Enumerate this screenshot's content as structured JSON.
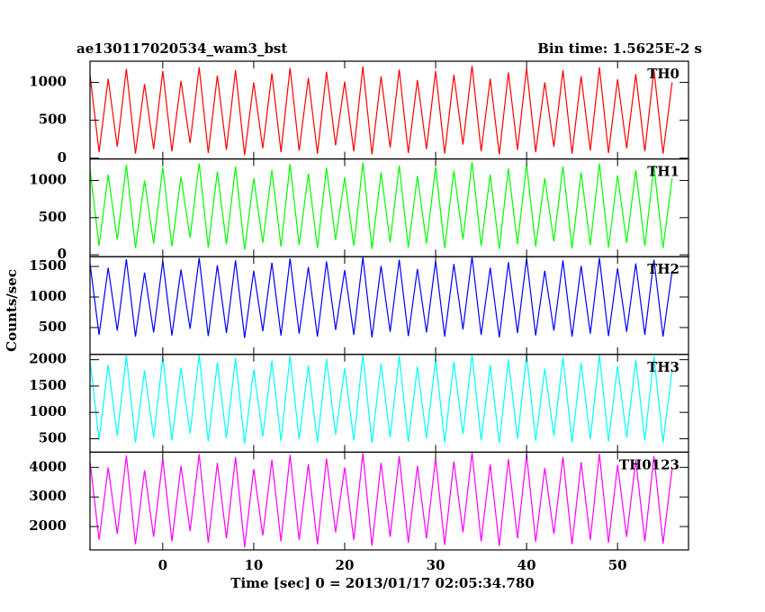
{
  "title": "ae130117020534_wam3_bst",
  "subtitle": "Bin time: 1.5625E-2 s",
  "ylabel": "Counts/sec",
  "xlabel": "Time [sec] 0 = 2013/01/17 02:05:34.780",
  "chart_data": [
    {
      "type": "line",
      "label": "TH0",
      "xlim": [
        -8,
        57.8
      ],
      "xticks": [
        0,
        10,
        20,
        30,
        40,
        50
      ],
      "ylim": [
        -10,
        1280
      ],
      "yticks": [
        0,
        500,
        1000
      ],
      "x": [
        -8,
        -7,
        -6,
        -5,
        -4,
        -3,
        -2,
        -1,
        0,
        1,
        2,
        3,
        4,
        5,
        6,
        7,
        8,
        9,
        10,
        11,
        12,
        13,
        14,
        15,
        16,
        17,
        18,
        19,
        20,
        21,
        22,
        23,
        24,
        25,
        26,
        27,
        28,
        29,
        30,
        31,
        32,
        33,
        34,
        35,
        36,
        37,
        38,
        39,
        40,
        41,
        42,
        43,
        44,
        45,
        46,
        47,
        48,
        49,
        50,
        51,
        52,
        53,
        54,
        55,
        56
      ],
      "series": [
        {
          "name": "TH0",
          "color": "#ff0000",
          "values": [
            1100,
            80,
            1050,
            150,
            1180,
            60,
            980,
            120,
            1150,
            90,
            1020,
            200,
            1200,
            70,
            1090,
            110,
            1160,
            40,
            1000,
            130,
            1120,
            80,
            1190,
            100,
            1060,
            60,
            1140,
            170,
            1010,
            90,
            1210,
            50,
            1080,
            140,
            1170,
            70,
            1030,
            120,
            1150,
            60,
            1100,
            180,
            1220,
            90,
            1050,
            50,
            1130,
            110,
            1190,
            80,
            1000,
            150,
            1160,
            60,
            1080,
            100,
            1200,
            70,
            1040,
            130,
            1110,
            90,
            1170,
            60,
            1000
          ]
        }
      ]
    },
    {
      "type": "line",
      "label": "TH1",
      "xlim": [
        -8,
        57.8
      ],
      "xticks": [
        0,
        10,
        20,
        30,
        40,
        50
      ],
      "ylim": [
        -25,
        1290
      ],
      "yticks": [
        0,
        500,
        1000
      ],
      "x": [
        -8,
        -7,
        -6,
        -5,
        -4,
        -3,
        -2,
        -1,
        0,
        1,
        2,
        3,
        4,
        5,
        6,
        7,
        8,
        9,
        10,
        11,
        12,
        13,
        14,
        15,
        16,
        17,
        18,
        19,
        20,
        21,
        22,
        23,
        24,
        25,
        26,
        27,
        28,
        29,
        30,
        31,
        32,
        33,
        34,
        35,
        36,
        37,
        38,
        39,
        40,
        41,
        42,
        43,
        44,
        45,
        46,
        47,
        48,
        49,
        50,
        51,
        52,
        53,
        54,
        55,
        56
      ],
      "series": [
        {
          "name": "TH1",
          "color": "#00ff00",
          "values": [
            1150,
            120,
            1080,
            200,
            1210,
            90,
            1000,
            150,
            1180,
            110,
            1050,
            230,
            1230,
            100,
            1120,
            140,
            1190,
            70,
            1030,
            160,
            1140,
            110,
            1220,
            130,
            1090,
            90,
            1170,
            200,
            1040,
            120,
            1240,
            80,
            1110,
            170,
            1200,
            100,
            1060,
            150,
            1180,
            90,
            1130,
            210,
            1250,
            120,
            1080,
            80,
            1160,
            140,
            1220,
            110,
            1030,
            180,
            1190,
            90,
            1110,
            130,
            1230,
            100,
            1070,
            160,
            1140,
            120,
            1200,
            90,
            1030
          ]
        }
      ]
    },
    {
      "type": "line",
      "label": "TH2",
      "xlim": [
        -8,
        57.8
      ],
      "xticks": [
        0,
        10,
        20,
        30,
        40,
        50
      ],
      "ylim": [
        60,
        1660
      ],
      "yticks": [
        500,
        1000,
        1500
      ],
      "x": [
        -8,
        -7,
        -6,
        -5,
        -4,
        -3,
        -2,
        -1,
        0,
        1,
        2,
        3,
        4,
        5,
        6,
        7,
        8,
        9,
        10,
        11,
        12,
        13,
        14,
        15,
        16,
        17,
        18,
        19,
        20,
        21,
        22,
        23,
        24,
        25,
        26,
        27,
        28,
        29,
        30,
        31,
        32,
        33,
        34,
        35,
        36,
        37,
        38,
        39,
        40,
        41,
        42,
        43,
        44,
        45,
        46,
        47,
        48,
        49,
        50,
        51,
        52,
        53,
        54,
        55,
        56
      ],
      "series": [
        {
          "name": "TH2",
          "color": "#0000ff",
          "values": [
            1550,
            380,
            1480,
            450,
            1620,
            350,
            1400,
            420,
            1590,
            370,
            1450,
            480,
            1640,
            360,
            1520,
            410,
            1600,
            330,
            1430,
            440,
            1560,
            370,
            1630,
            400,
            1490,
            350,
            1580,
            460,
            1440,
            380,
            1650,
            340,
            1510,
            430,
            1610,
            360,
            1460,
            420,
            1590,
            350,
            1540,
            470,
            1660,
            380,
            1480,
            340,
            1570,
            410,
            1630,
            370,
            1430,
            450,
            1600,
            350,
            1510,
            400,
            1640,
            360,
            1470,
            430,
            1550,
            380,
            1610,
            350,
            1420
          ]
        }
      ]
    },
    {
      "type": "line",
      "label": "TH3",
      "xlim": [
        -8,
        57.8
      ],
      "xticks": [
        0,
        10,
        20,
        30,
        40,
        50
      ],
      "ylim": [
        245,
        2100
      ],
      "yticks": [
        500,
        1000,
        1500,
        2000
      ],
      "x": [
        -8,
        -7,
        -6,
        -5,
        -4,
        -3,
        -2,
        -1,
        0,
        1,
        2,
        3,
        4,
        5,
        6,
        7,
        8,
        9,
        10,
        11,
        12,
        13,
        14,
        15,
        16,
        17,
        18,
        19,
        20,
        21,
        22,
        23,
        24,
        25,
        26,
        27,
        28,
        29,
        30,
        31,
        32,
        33,
        34,
        35,
        36,
        37,
        38,
        39,
        40,
        41,
        42,
        43,
        44,
        45,
        46,
        47,
        48,
        49,
        50,
        51,
        52,
        53,
        54,
        55,
        56
      ],
      "series": [
        {
          "name": "TH3",
          "color": "#00ffff",
          "values": [
            2000,
            480,
            1900,
            560,
            2080,
            430,
            1800,
            520,
            2050,
            470,
            1850,
            600,
            2090,
            450,
            1950,
            510,
            2030,
            410,
            1820,
            540,
            1980,
            460,
            2070,
            490,
            1890,
            430,
            2010,
            580,
            1840,
            470,
            2090,
            420,
            1930,
            530,
            2060,
            440,
            1870,
            510,
            2020,
            430,
            1960,
            590,
            2095,
            470,
            1900,
            420,
            2000,
            500,
            2080,
            460,
            1830,
            560,
            2040,
            430,
            1940,
            490,
            2085,
            450,
            1880,
            520,
            1990,
            470,
            2060,
            430,
            1810
          ]
        }
      ]
    },
    {
      "type": "line",
      "label": "TH0123",
      "xlim": [
        -8,
        57.8
      ],
      "xticks": [
        0,
        10,
        20,
        30,
        40,
        50
      ],
      "ylim": [
        1210,
        4515
      ],
      "yticks": [
        2000,
        3000,
        4000
      ],
      "x": [
        -8,
        -7,
        -6,
        -5,
        -4,
        -3,
        -2,
        -1,
        0,
        1,
        2,
        3,
        4,
        5,
        6,
        7,
        8,
        9,
        10,
        11,
        12,
        13,
        14,
        15,
        16,
        17,
        18,
        19,
        20,
        21,
        22,
        23,
        24,
        25,
        26,
        27,
        28,
        29,
        30,
        31,
        32,
        33,
        34,
        35,
        36,
        37,
        38,
        39,
        40,
        41,
        42,
        43,
        44,
        45,
        46,
        47,
        48,
        49,
        50,
        51,
        52,
        53,
        54,
        55,
        56
      ],
      "series": [
        {
          "name": "TH0123",
          "color": "#ff00ff",
          "values": [
            4200,
            1550,
            4000,
            1750,
            4400,
            1400,
            3900,
            1650,
            4300,
            1500,
            4050,
            1850,
            4450,
            1450,
            4150,
            1600,
            4350,
            1300,
            3950,
            1700,
            4250,
            1500,
            4420,
            1550,
            4100,
            1400,
            4300,
            1800,
            4000,
            1550,
            4480,
            1350,
            4150,
            1650,
            4380,
            1450,
            4050,
            1600,
            4320,
            1380,
            4200,
            1800,
            4500,
            1500,
            4100,
            1350,
            4280,
            1600,
            4430,
            1480,
            3980,
            1750,
            4350,
            1400,
            4180,
            1550,
            4460,
            1450,
            4080,
            1650,
            4250,
            1500,
            4380,
            1420,
            3950
          ]
        }
      ]
    }
  ]
}
